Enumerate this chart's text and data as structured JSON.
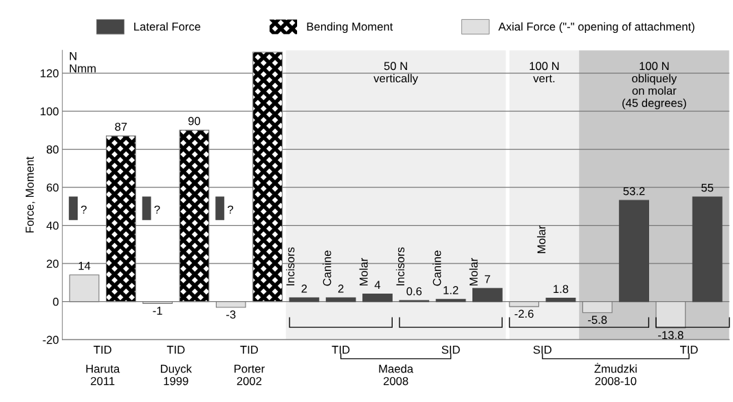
{
  "chart_data": {
    "type": "bar",
    "categories": [
      null,
      null,
      null,
      null,
      null,
      null,
      null,
      null,
      null,
      null,
      null,
      null,
      null,
      null,
      null,
      null,
      null,
      null
    ],
    "series": [
      {
        "name": "Lateral Force",
        "color": "#464646",
        "values": [
          12,
          null,
          12,
          null,
          12,
          null,
          2,
          2,
          4,
          0.6,
          1.2,
          7,
          null,
          1.8,
          null,
          53.2,
          null,
          55
        ],
        "base": [
          43,
          null,
          43,
          null,
          43,
          null,
          null,
          null,
          null,
          null,
          null,
          null,
          null,
          null,
          null,
          null,
          null,
          null
        ],
        "value_labels": [
          "?",
          null,
          "?",
          null,
          "?",
          null,
          "2",
          "2",
          "4",
          "0.6",
          "1.2",
          "7",
          null,
          "1.8",
          null,
          "53.2",
          null,
          "55"
        ]
      },
      {
        "name": "Bending Moment",
        "color": "#000000",
        "values": [
          null,
          87,
          null,
          90,
          null,
          131,
          null,
          null,
          null,
          null,
          null,
          null,
          null,
          null,
          null,
          null,
          null,
          null
        ],
        "value_labels": [
          null,
          "87",
          null,
          "90",
          null,
          null,
          null,
          null,
          null,
          null,
          null,
          null,
          null,
          null,
          null,
          null,
          null,
          null
        ]
      },
      {
        "name": "Axial Force (\"-\" opening of attachment)",
        "color": "#e0e0e0",
        "values": [
          14,
          null,
          -1,
          null,
          -3,
          null,
          null,
          null,
          null,
          null,
          null,
          null,
          -2.6,
          null,
          -5.8,
          null,
          -13.8,
          null
        ],
        "value_labels": [
          "14",
          null,
          "-1",
          null,
          "-3",
          null,
          null,
          null,
          null,
          null,
          null,
          null,
          "-2.6",
          null,
          "-5.8",
          null,
          "-13.8",
          null
        ]
      }
    ],
    "ylabel": "Force, Moment",
    "ylim": [
      -20,
      132
    ],
    "yticks": [
      -20,
      0,
      20,
      40,
      60,
      80,
      100,
      120
    ],
    "grid": "y",
    "legend": "top",
    "annotations": [
      "N\nNmm",
      "TID",
      "TID",
      "TID",
      "TID",
      "SID",
      "SID",
      "TID",
      "Haruta\n2011",
      "Duyck\n1999",
      "Porter\n2002",
      "Maeda\n2008",
      "Żmudzki\n2008-10",
      "Incisors",
      "Canine",
      "Molar",
      "Incisors",
      "Canine",
      "Molar",
      "Molar",
      "50 N\nvertically",
      "100 N\nvert.",
      "100 N\nobliquely\non molar\n(45 degrees)"
    ]
  }
}
